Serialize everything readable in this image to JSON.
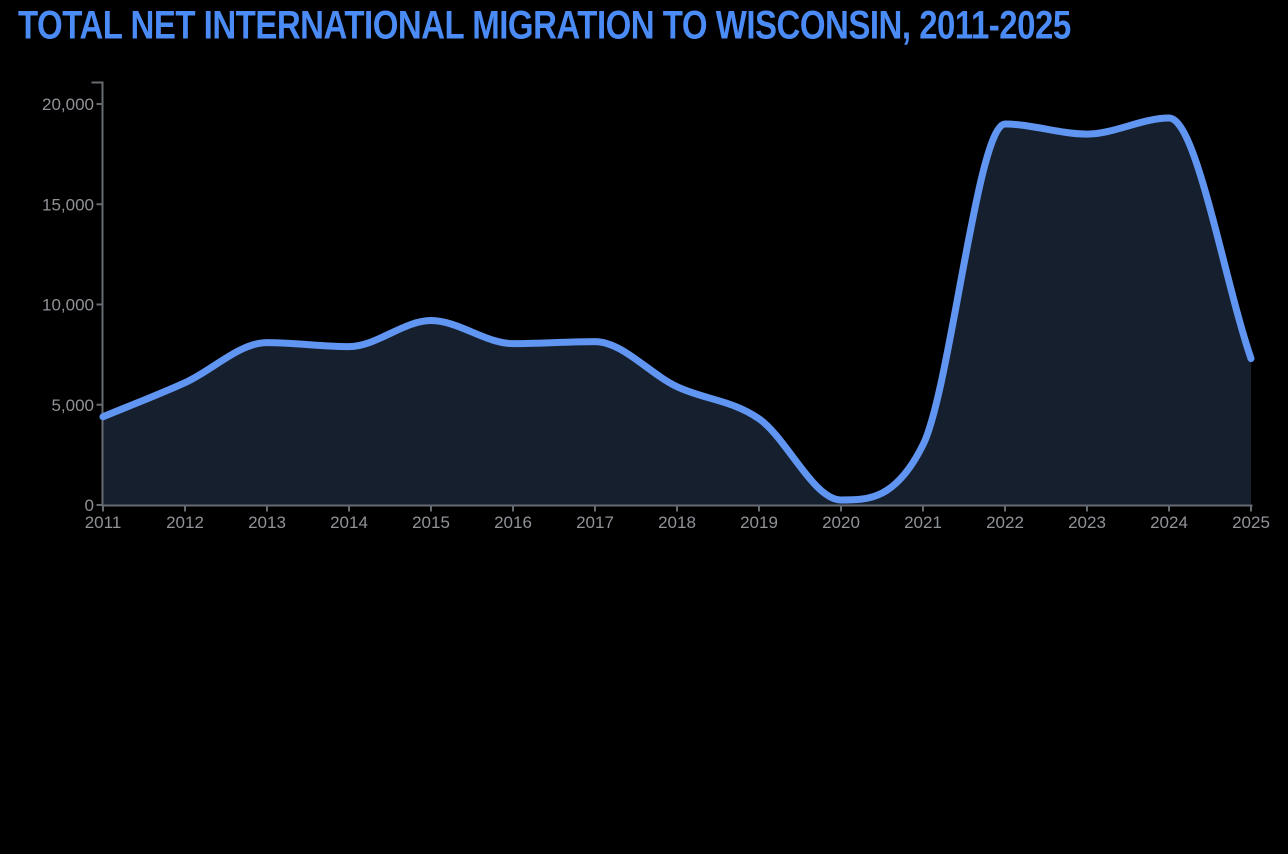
{
  "title": "TOTAL NET INTERNATIONAL MIGRATION TO WISCONSIN, 2011-2025",
  "colors": {
    "background": "#000000",
    "title": "#4b8bf5",
    "line": "#6095f2",
    "area_fill": "#161f2d",
    "axis": "#666a71",
    "tick_label": "#8f9297"
  },
  "chart_data": {
    "type": "area",
    "title": "TOTAL NET INTERNATIONAL MIGRATION TO WISCONSIN, 2011-2025",
    "series_name": "Total net international migration",
    "x": [
      2011,
      2012,
      2013,
      2014,
      2015,
      2016,
      2017,
      2018,
      2019,
      2020,
      2021,
      2022,
      2023,
      2024,
      2025
    ],
    "categories": [
      "2011",
      "2012",
      "2013",
      "2014",
      "2015",
      "2016",
      "2017",
      "2018",
      "2019",
      "2020",
      "2021",
      "2022",
      "2023",
      "2024",
      "2025"
    ],
    "values": [
      4400,
      6100,
      8100,
      7900,
      9200,
      8050,
      8150,
      5900,
      4300,
      250,
      3000,
      19000,
      18500,
      19300,
      7300
    ],
    "xlabel": "",
    "ylabel": "",
    "xlim": [
      2011,
      2025
    ],
    "ylim": [
      0,
      20000
    ],
    "y_ticks": [
      0,
      5000,
      10000,
      15000,
      20000
    ],
    "y_tick_labels": [
      "0",
      "5,000",
      "10,000",
      "15,000",
      "20,000"
    ],
    "grid": false,
    "legend": false,
    "smoothing": "monotone"
  }
}
